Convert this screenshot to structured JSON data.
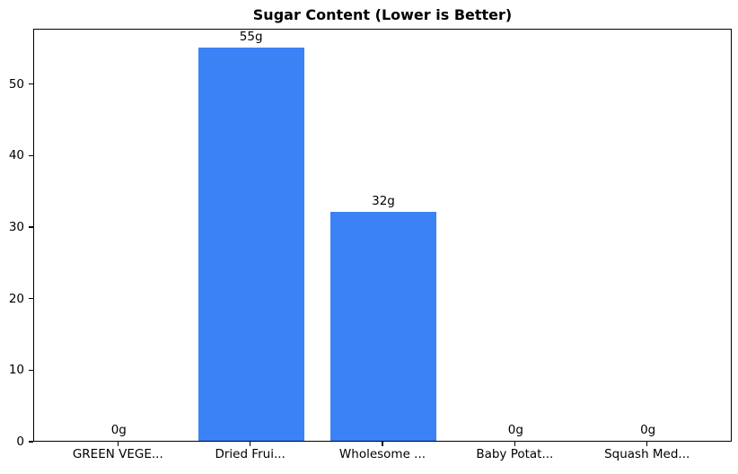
{
  "chart_data": {
    "type": "bar",
    "title": "Sugar Content (Lower is Better)",
    "categories": [
      "GREEN VEGE...",
      "Dried Frui...",
      "Wholesome ...",
      "Baby Potat...",
      "Squash Med..."
    ],
    "values": [
      0,
      55,
      32,
      0,
      0
    ],
    "bar_labels": [
      "0g",
      "55g",
      "32g",
      "0g",
      "0g"
    ],
    "xlabel": "",
    "ylabel": "",
    "yticks": [
      0,
      10,
      20,
      30,
      40,
      50
    ],
    "ytick_labels": [
      "0",
      "10",
      "20",
      "30",
      "40",
      "50"
    ],
    "ylim": [
      0,
      57.75
    ],
    "xlim": [
      -0.64,
      4.64
    ],
    "bar_width": 0.8,
    "bar_color": "#3b82f6",
    "axis_color": "#000000",
    "text_color": "#000000",
    "background_color": "#ffffff",
    "grid": false,
    "legend": null
  }
}
